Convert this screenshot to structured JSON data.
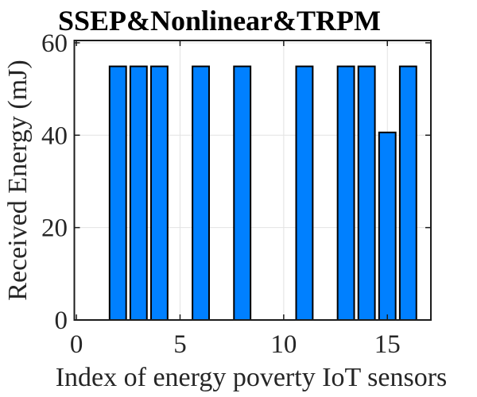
{
  "chart_data": {
    "type": "bar",
    "title": "SSEP&Nonlinear&TRPM",
    "xlabel": "Index of energy poverty IoT sensors",
    "ylabel": "Received Energy (mJ)",
    "x": [
      2,
      3,
      4,
      6,
      8,
      11,
      13,
      14,
      15,
      16
    ],
    "values": [
      54.9,
      54.9,
      54.9,
      54.9,
      54.9,
      54.9,
      54.9,
      54.9,
      40.6,
      54.9
    ],
    "bar_width": 0.8,
    "xlim": [
      -0.1,
      17.1
    ],
    "ylim": [
      0,
      60.5
    ],
    "xticks": [
      0,
      5,
      10,
      15
    ],
    "yticks": [
      0,
      20,
      40,
      60
    ],
    "grid": true,
    "legend": null,
    "colors": {
      "bar_fill": "#0080FF",
      "bar_edge": "#000000",
      "grid": "#E3E3E3",
      "axis": "#1C1C1C",
      "text": "#262626",
      "title": "#000000"
    }
  }
}
